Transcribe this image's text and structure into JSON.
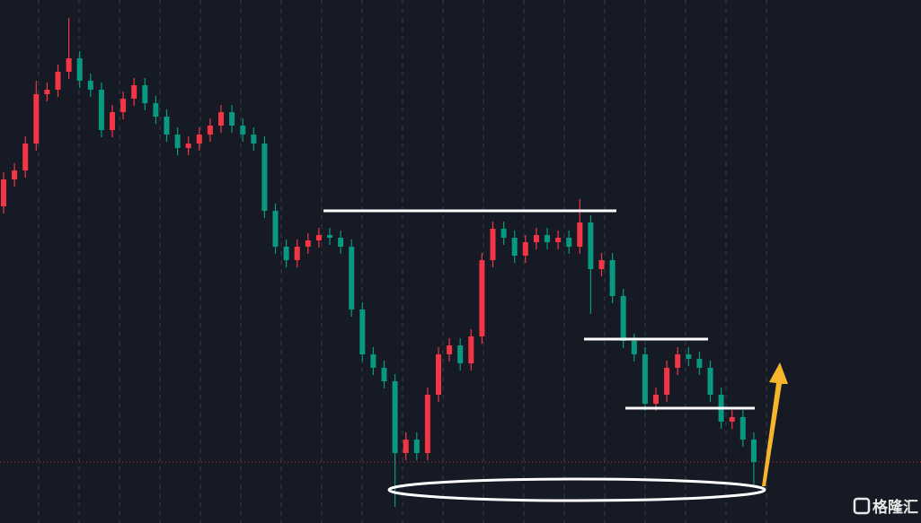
{
  "chart_data": {
    "type": "candlestick",
    "watermark": "格隆汇",
    "up_color": "#f23645",
    "down_color": "#089981",
    "ylim": [
      17,
      600
    ],
    "grid": true,
    "open": [
      370,
      400,
      410,
      440,
      495,
      500,
      520,
      535,
      510,
      500,
      455,
      475,
      490,
      505,
      485,
      470,
      450,
      435,
      440,
      450,
      460,
      475,
      460,
      450,
      440,
      365,
      325,
      310,
      325,
      332,
      338,
      335,
      325,
      255,
      205,
      190,
      175,
      95,
      110,
      95,
      160,
      205,
      215,
      195,
      225,
      310,
      345,
      335,
      315,
      330,
      338,
      330,
      335,
      325,
      352,
      300,
      310,
      270,
      220,
      205,
      150,
      160,
      190,
      205,
      200,
      190,
      160,
      130,
      135,
      110
    ],
    "high": [
      408,
      418,
      448,
      510,
      508,
      528,
      580,
      543,
      518,
      508,
      483,
      498,
      513,
      513,
      493,
      478,
      458,
      448,
      458,
      468,
      483,
      483,
      468,
      458,
      448,
      373,
      333,
      333,
      340,
      346,
      346,
      343,
      333,
      263,
      213,
      198,
      183,
      118,
      118,
      168,
      213,
      223,
      223,
      233,
      318,
      353,
      353,
      343,
      338,
      346,
      346,
      343,
      343,
      378,
      360,
      318,
      318,
      278,
      228,
      213,
      168,
      198,
      213,
      213,
      208,
      198,
      168,
      143,
      143,
      118
    ],
    "low": [
      362,
      392,
      402,
      432,
      487,
      492,
      512,
      502,
      492,
      447,
      447,
      467,
      482,
      477,
      462,
      442,
      427,
      427,
      432,
      442,
      452,
      452,
      442,
      432,
      357,
      317,
      302,
      302,
      317,
      324,
      327,
      317,
      247,
      197,
      182,
      167,
      35,
      87,
      87,
      87,
      152,
      197,
      187,
      187,
      217,
      302,
      327,
      307,
      307,
      322,
      322,
      322,
      317,
      317,
      250,
      292,
      262,
      212,
      197,
      142,
      142,
      152,
      182,
      192,
      182,
      152,
      122,
      122,
      102,
      60
    ],
    "close": [
      400,
      410,
      440,
      495,
      500,
      520,
      535,
      510,
      500,
      455,
      475,
      490,
      505,
      485,
      470,
      450,
      435,
      440,
      450,
      460,
      475,
      460,
      450,
      440,
      365,
      325,
      310,
      325,
      332,
      338,
      335,
      325,
      255,
      205,
      190,
      175,
      95,
      110,
      95,
      160,
      205,
      215,
      195,
      225,
      310,
      345,
      335,
      315,
      330,
      338,
      330,
      335,
      325,
      352,
      300,
      310,
      270,
      220,
      205,
      150,
      160,
      190,
      205,
      200,
      190,
      160,
      130,
      135,
      110,
      85
    ]
  }
}
